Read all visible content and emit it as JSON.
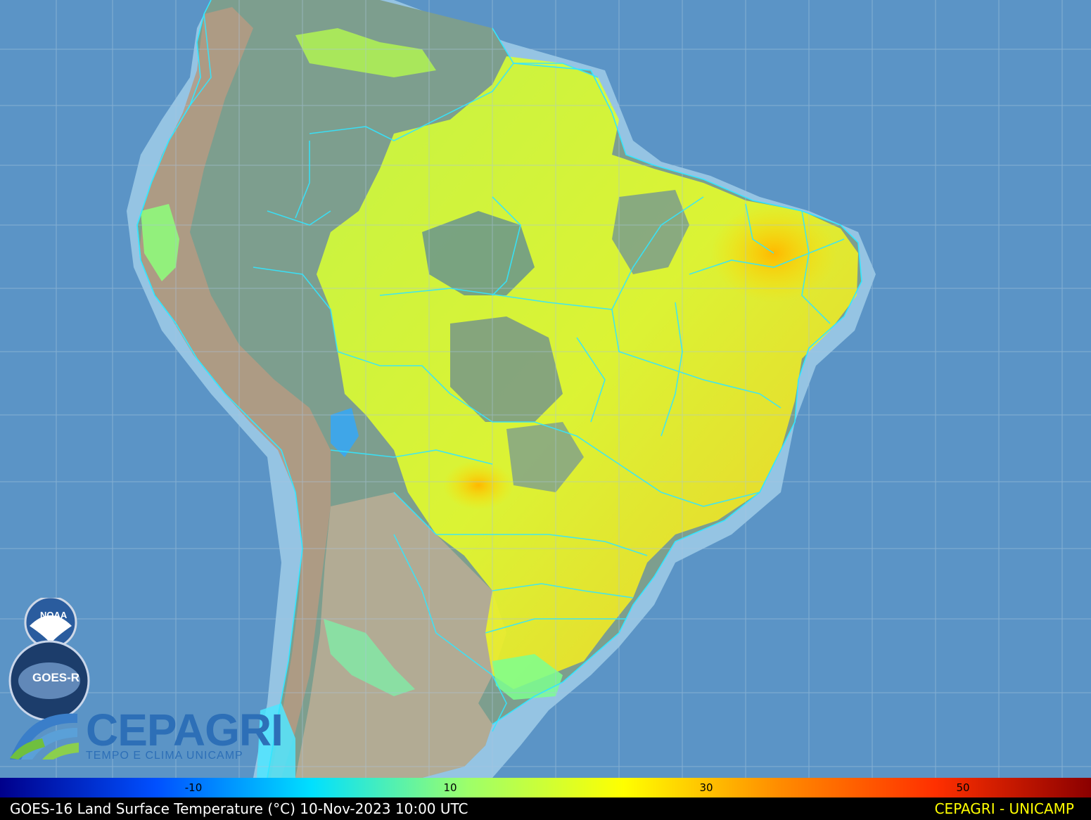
{
  "map": {
    "title": "GOES-16 Land Surface Temperature (°C) 10-Nov-2023 10:00 UTC",
    "credit": "CEPAGRI - UNICAMP",
    "credit_color": "#ffff00",
    "ocean_color": "#5b94c6",
    "land_color": "#7d9e8e",
    "graticule_color": "#a9c6df",
    "border_color": "#33e6ff"
  },
  "colorbar": {
    "ticks": [
      "-10",
      "10",
      "30",
      "50"
    ],
    "stops": [
      "#00008b",
      "#0050ff",
      "#00e0ff",
      "#9dff6a",
      "#ffff00",
      "#ff8c00",
      "#ff3000",
      "#8b0000"
    ]
  },
  "logos": {
    "noaa": "NOAA",
    "goes": "GOES-R",
    "cepagri_name": "CEPAGRI",
    "cepagri_tagline": "TEMPO E CLIMA UNICAMP"
  }
}
